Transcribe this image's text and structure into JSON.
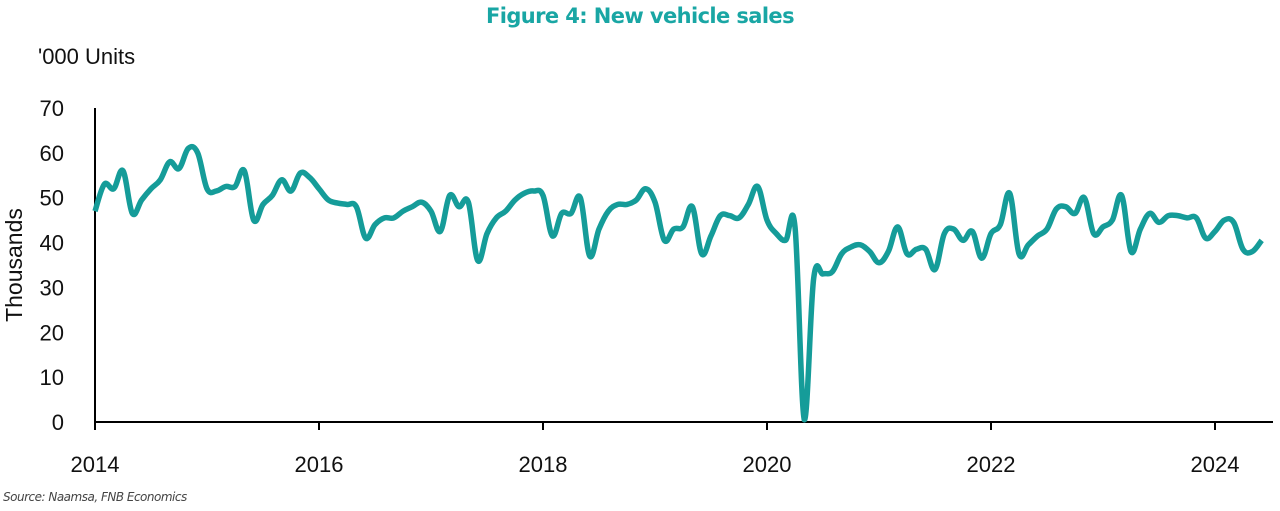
{
  "chart_data": {
    "type": "line",
    "title": "Figure 4: New vehicle sales",
    "units_label": "'000 Units",
    "xlabel": "",
    "ylabel": "Thousands",
    "source": "Source: Naamsa, FNB Economics",
    "ylim": [
      0,
      70
    ],
    "yticks": [
      0,
      10,
      20,
      30,
      40,
      50,
      60,
      70
    ],
    "xticks": [
      "2014",
      "2016",
      "2018",
      "2020",
      "2022",
      "2024"
    ],
    "xrange": [
      "2014-01",
      "2024-06"
    ],
    "grid": false,
    "line_color": "#159c99",
    "frequency": "monthly",
    "start": "2014-01",
    "series": [
      {
        "name": "New vehicle sales",
        "values": [
          47,
          53,
          52,
          56,
          46.5,
          49.5,
          52,
          54,
          58,
          56.5,
          61,
          60,
          52,
          51.5,
          52.5,
          52.5,
          56,
          45,
          48.5,
          50.5,
          54,
          51.5,
          55.5,
          54.5,
          52,
          49.5,
          48.8,
          48.5,
          48,
          41,
          44,
          45.5,
          45.5,
          47,
          48,
          49,
          47,
          42.5,
          50.5,
          48,
          49,
          36,
          42,
          45.5,
          47,
          49.5,
          51,
          51.5,
          50.5,
          41.5,
          46.5,
          46.5,
          50,
          37,
          43,
          47,
          48.5,
          48.5,
          49.5,
          52,
          49,
          40.5,
          43,
          43.5,
          48,
          37.5,
          41.5,
          46,
          46,
          45.5,
          48.5,
          52.5,
          45,
          42,
          40.5,
          43.5,
          0.5,
          32,
          33,
          33.5,
          37.5,
          39,
          39.5,
          38,
          35.5,
          38,
          43.5,
          37.5,
          38.5,
          38.5,
          34,
          42,
          43,
          40.5,
          42.5,
          36.5,
          42,
          44,
          51,
          37.5,
          39.5,
          41.5,
          43,
          47.5,
          48,
          46.5,
          50,
          42,
          43.5,
          45,
          50.5,
          38,
          43,
          46.5,
          44.5,
          46,
          46,
          45.5,
          45.5,
          41,
          42.5,
          45,
          44.5,
          38.5,
          38,
          40.5
        ]
      }
    ]
  }
}
